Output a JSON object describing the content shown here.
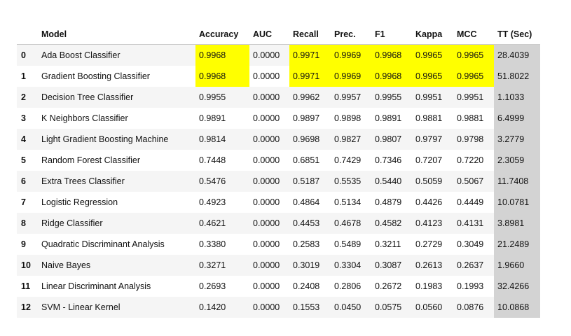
{
  "table": {
    "headers": [
      "",
      "Model",
      "Accuracy",
      "AUC",
      "Recall",
      "Prec.",
      "F1",
      "Kappa",
      "MCC",
      "TT (Sec)"
    ],
    "rows": [
      {
        "index": "0",
        "model": "Ada Boost Classifier",
        "accuracy": "0.9968",
        "auc": "0.0000",
        "recall": "0.9971",
        "prec": "0.9969",
        "f1": "0.9968",
        "kappa": "0.9965",
        "mcc": "0.9965",
        "tt": "28.4039"
      },
      {
        "index": "1",
        "model": "Gradient Boosting Classifier",
        "accuracy": "0.9968",
        "auc": "0.0000",
        "recall": "0.9971",
        "prec": "0.9969",
        "f1": "0.9968",
        "kappa": "0.9965",
        "mcc": "0.9965",
        "tt": "51.8022"
      },
      {
        "index": "2",
        "model": "Decision Tree Classifier",
        "accuracy": "0.9955",
        "auc": "0.0000",
        "recall": "0.9962",
        "prec": "0.9957",
        "f1": "0.9955",
        "kappa": "0.9951",
        "mcc": "0.9951",
        "tt": "1.1033"
      },
      {
        "index": "3",
        "model": "K Neighbors Classifier",
        "accuracy": "0.9891",
        "auc": "0.0000",
        "recall": "0.9897",
        "prec": "0.9898",
        "f1": "0.9891",
        "kappa": "0.9881",
        "mcc": "0.9881",
        "tt": "6.4999"
      },
      {
        "index": "4",
        "model": "Light Gradient Boosting Machine",
        "accuracy": "0.9814",
        "auc": "0.0000",
        "recall": "0.9698",
        "prec": "0.9827",
        "f1": "0.9807",
        "kappa": "0.9797",
        "mcc": "0.9798",
        "tt": "3.2779"
      },
      {
        "index": "5",
        "model": "Random Forest Classifier",
        "accuracy": "0.7448",
        "auc": "0.0000",
        "recall": "0.6851",
        "prec": "0.7429",
        "f1": "0.7346",
        "kappa": "0.7207",
        "mcc": "0.7220",
        "tt": "2.3059"
      },
      {
        "index": "6",
        "model": "Extra Trees Classifier",
        "accuracy": "0.5476",
        "auc": "0.0000",
        "recall": "0.5187",
        "prec": "0.5535",
        "f1": "0.5440",
        "kappa": "0.5059",
        "mcc": "0.5067",
        "tt": "11.7408"
      },
      {
        "index": "7",
        "model": "Logistic Regression",
        "accuracy": "0.4923",
        "auc": "0.0000",
        "recall": "0.4864",
        "prec": "0.5134",
        "f1": "0.4879",
        "kappa": "0.4426",
        "mcc": "0.4449",
        "tt": "10.0781"
      },
      {
        "index": "8",
        "model": "Ridge Classifier",
        "accuracy": "0.4621",
        "auc": "0.0000",
        "recall": "0.4453",
        "prec": "0.4678",
        "f1": "0.4582",
        "kappa": "0.4123",
        "mcc": "0.4131",
        "tt": "3.8981"
      },
      {
        "index": "9",
        "model": "Quadratic Discriminant Analysis",
        "accuracy": "0.3380",
        "auc": "0.0000",
        "recall": "0.2583",
        "prec": "0.5489",
        "f1": "0.3211",
        "kappa": "0.2729",
        "mcc": "0.3049",
        "tt": "21.2489"
      },
      {
        "index": "10",
        "model": "Naive Bayes",
        "accuracy": "0.3271",
        "auc": "0.0000",
        "recall": "0.3019",
        "prec": "0.3304",
        "f1": "0.3087",
        "kappa": "0.2613",
        "mcc": "0.2637",
        "tt": "1.9660"
      },
      {
        "index": "11",
        "model": "Linear Discriminant Analysis",
        "accuracy": "0.2693",
        "auc": "0.0000",
        "recall": "0.2408",
        "prec": "0.2806",
        "f1": "0.2672",
        "kappa": "0.1983",
        "mcc": "0.1993",
        "tt": "32.4266"
      },
      {
        "index": "12",
        "model": "SVM - Linear Kernel",
        "accuracy": "0.1420",
        "auc": "0.0000",
        "recall": "0.1553",
        "prec": "0.0450",
        "f1": "0.0575",
        "kappa": "0.0560",
        "mcc": "0.0876",
        "tt": "10.0868"
      }
    ],
    "highlight_color": "#ffff00",
    "tt_column_color": "#d3d3d3",
    "stripe_color": "#f5f5f5"
  }
}
